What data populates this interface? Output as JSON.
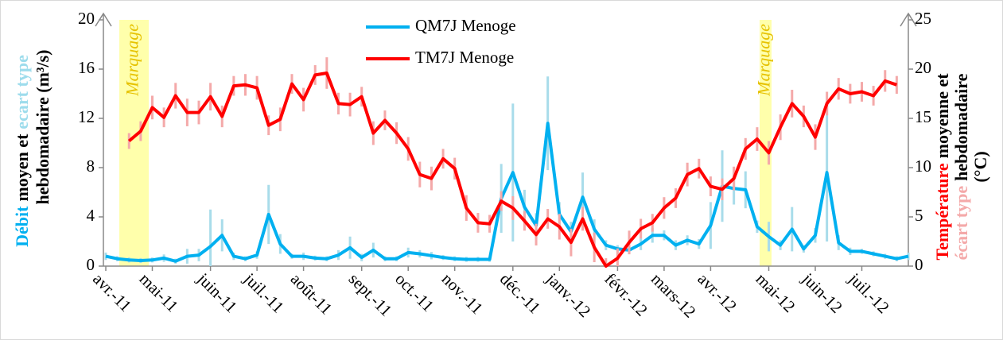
{
  "chart_data": {
    "type": "line",
    "categories": [
      "avr.-11",
      null,
      null,
      null,
      "mai-11",
      null,
      null,
      null,
      null,
      "juin-11",
      null,
      null,
      null,
      "juil.-11",
      null,
      null,
      null,
      "août-11",
      null,
      null,
      null,
      null,
      "sept.-11",
      null,
      null,
      null,
      "oct.-11",
      null,
      null,
      null,
      "nov.-11",
      null,
      null,
      null,
      null,
      "déc.-11",
      null,
      null,
      null,
      "janv.-12",
      null,
      null,
      null,
      null,
      "févr.-12",
      null,
      null,
      null,
      "mars-12",
      null,
      null,
      null,
      "avr.-12",
      null,
      null,
      null,
      null,
      "mai-12",
      null,
      null,
      null,
      "juin-12",
      null,
      null,
      null,
      "juil.-12",
      null,
      null,
      null,
      null
    ],
    "y_label": [
      "Débit",
      "moyen et",
      "ecart type",
      "hebdomadaire (m³/s)"
    ],
    "y2_label": [
      "Température",
      "moyenne et",
      "écart type",
      "hebdomadaire",
      "(°C)"
    ],
    "annotations": [
      "Marquage",
      "Marquage"
    ],
    "ylim": [
      0,
      20
    ],
    "yticks": [
      0,
      4,
      8,
      12,
      16,
      20
    ],
    "y2lim": [
      0,
      25
    ],
    "y2ticks": [
      0,
      5,
      10,
      15,
      20,
      25
    ],
    "series": [
      {
        "name": "QM7J Menoge",
        "color": "#00b0f0",
        "error_color": "#a8dcea",
        "values": [
          0.8,
          0.6,
          0.5,
          0.45,
          0.5,
          0.65,
          0.4,
          0.8,
          0.9,
          1.6,
          2.5,
          0.8,
          0.6,
          0.9,
          4.2,
          1.8,
          0.8,
          0.8,
          0.65,
          0.6,
          0.9,
          1.5,
          0.7,
          1.3,
          0.6,
          0.6,
          1.1,
          1.0,
          0.85,
          0.7,
          0.6,
          0.55,
          0.55,
          0.55,
          5.5,
          7.6,
          4.8,
          3.3,
          11.6,
          4.2,
          2.8,
          5.6,
          3.0,
          1.7,
          1.4,
          1.3,
          1.8,
          2.5,
          2.5,
          1.7,
          2.1,
          1.8,
          3.3,
          6.5,
          6.3,
          6.2,
          3.2,
          2.4,
          1.7,
          3.0,
          1.4,
          2.5,
          7.6,
          1.9,
          1.2,
          1.2,
          1.0,
          0.8,
          0.6,
          0.8
        ],
        "errors": [
          0.3,
          0.2,
          0.2,
          0.2,
          0.2,
          0.3,
          0.2,
          0.6,
          0.5,
          3.0,
          1.3,
          0.3,
          0.2,
          0.3,
          2.4,
          0.8,
          0.2,
          0.3,
          0.2,
          0.2,
          0.4,
          0.9,
          0.3,
          0.6,
          0.2,
          0.2,
          0.4,
          0.3,
          0.3,
          0.2,
          0.2,
          0.2,
          0.2,
          0.2,
          2.8,
          5.6,
          1.4,
          1.0,
          3.8,
          1.0,
          0.8,
          2.0,
          0.8,
          0.4,
          0.3,
          0.3,
          0.5,
          0.6,
          0.4,
          0.4,
          0.4,
          0.4,
          1.9,
          2.9,
          1.3,
          1.5,
          0.5,
          1.2,
          0.4,
          1.8,
          0.3,
          0.6,
          5.6,
          0.6,
          0.3,
          0.2,
          0.2,
          0.2,
          0.2,
          0.3
        ]
      },
      {
        "name": "TM7J Menoge",
        "color": "#ff0000",
        "error_color": "#f4a9a9",
        "axis": "y2",
        "values": [
          null,
          null,
          12.7,
          13.7,
          16.1,
          15.1,
          17.3,
          15.6,
          15.6,
          17.2,
          15.2,
          18.3,
          18.4,
          18.1,
          14.3,
          14.9,
          18.5,
          16.9,
          19.4,
          19.6,
          16.5,
          16.4,
          17.2,
          13.5,
          14.8,
          13.5,
          11.9,
          9.3,
          8.9,
          10.9,
          9.9,
          5.9,
          4.4,
          4.3,
          6.6,
          5.9,
          4.6,
          3.2,
          4.8,
          4.0,
          2.4,
          4.8,
          1.9,
          0,
          0.8,
          2.4,
          3.8,
          4.4,
          5.9,
          6.9,
          9.3,
          9.9,
          8.1,
          7.8,
          8.9,
          11.9,
          12.9,
          11.5,
          14.1,
          16.5,
          15.2,
          13.1,
          16.5,
          18.0,
          17.5,
          17.7,
          17.3,
          18.8,
          18.4,
          null
        ],
        "errors": [
          null,
          null,
          0.8,
          1.0,
          1.2,
          1.0,
          1.3,
          1.4,
          1.2,
          1.4,
          1.1,
          1.0,
          1.1,
          1.2,
          1.0,
          1.2,
          1.0,
          1.2,
          1.0,
          1.6,
          1.1,
          1.2,
          1.0,
          1.2,
          1.0,
          1.1,
          1.2,
          1.3,
          1.2,
          1.0,
          1.1,
          1.3,
          1.0,
          0.9,
          1.0,
          1.2,
          1.0,
          1.1,
          1.0,
          1.3,
          1.4,
          1.2,
          1.5,
          0.8,
          1.0,
          1.2,
          1.0,
          0.9,
          1.1,
          1.0,
          1.2,
          1.0,
          1.0,
          1.1,
          1.2,
          1.1,
          1.2,
          1.2,
          1.3,
          1.4,
          1.1,
          1.3,
          1.2,
          1.1,
          1.0,
          1.0,
          1.0,
          1.1,
          0.9,
          null
        ]
      }
    ]
  }
}
